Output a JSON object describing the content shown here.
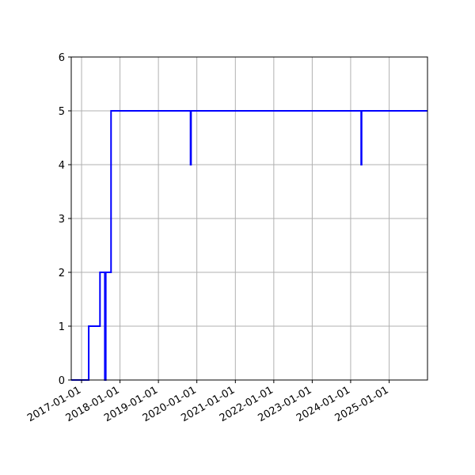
{
  "chart_data": {
    "type": "line",
    "step": true,
    "title": "",
    "xlabel": "",
    "ylabel": "",
    "xlim": [
      "2016-09-25",
      "2025-12-31"
    ],
    "ylim": [
      0,
      6
    ],
    "grid": true,
    "line_color": "#0000ff",
    "x_tick_labels": [
      "2017-01-01",
      "2018-01-01",
      "2019-01-01",
      "2020-01-01",
      "2021-01-01",
      "2022-01-01",
      "2023-01-01",
      "2024-01-01",
      "2025-01-01"
    ],
    "y_tick_labels": [
      "0",
      "1",
      "2",
      "3",
      "4",
      "5",
      "6"
    ],
    "series": [
      {
        "x": [
          "2016-09-25",
          "2017-03-10",
          "2017-06-25",
          "2017-08-10",
          "2017-08-13",
          "2017-08-16",
          "2017-08-19",
          "2017-08-22",
          "2017-10-08",
          "2019-11-02",
          "2019-11-07",
          "2024-04-10",
          "2024-04-14",
          "2025-12-31"
        ],
        "y": [
          0,
          1,
          2,
          0,
          2,
          0,
          2,
          2,
          5,
          4,
          5,
          4,
          5,
          5
        ]
      }
    ]
  }
}
